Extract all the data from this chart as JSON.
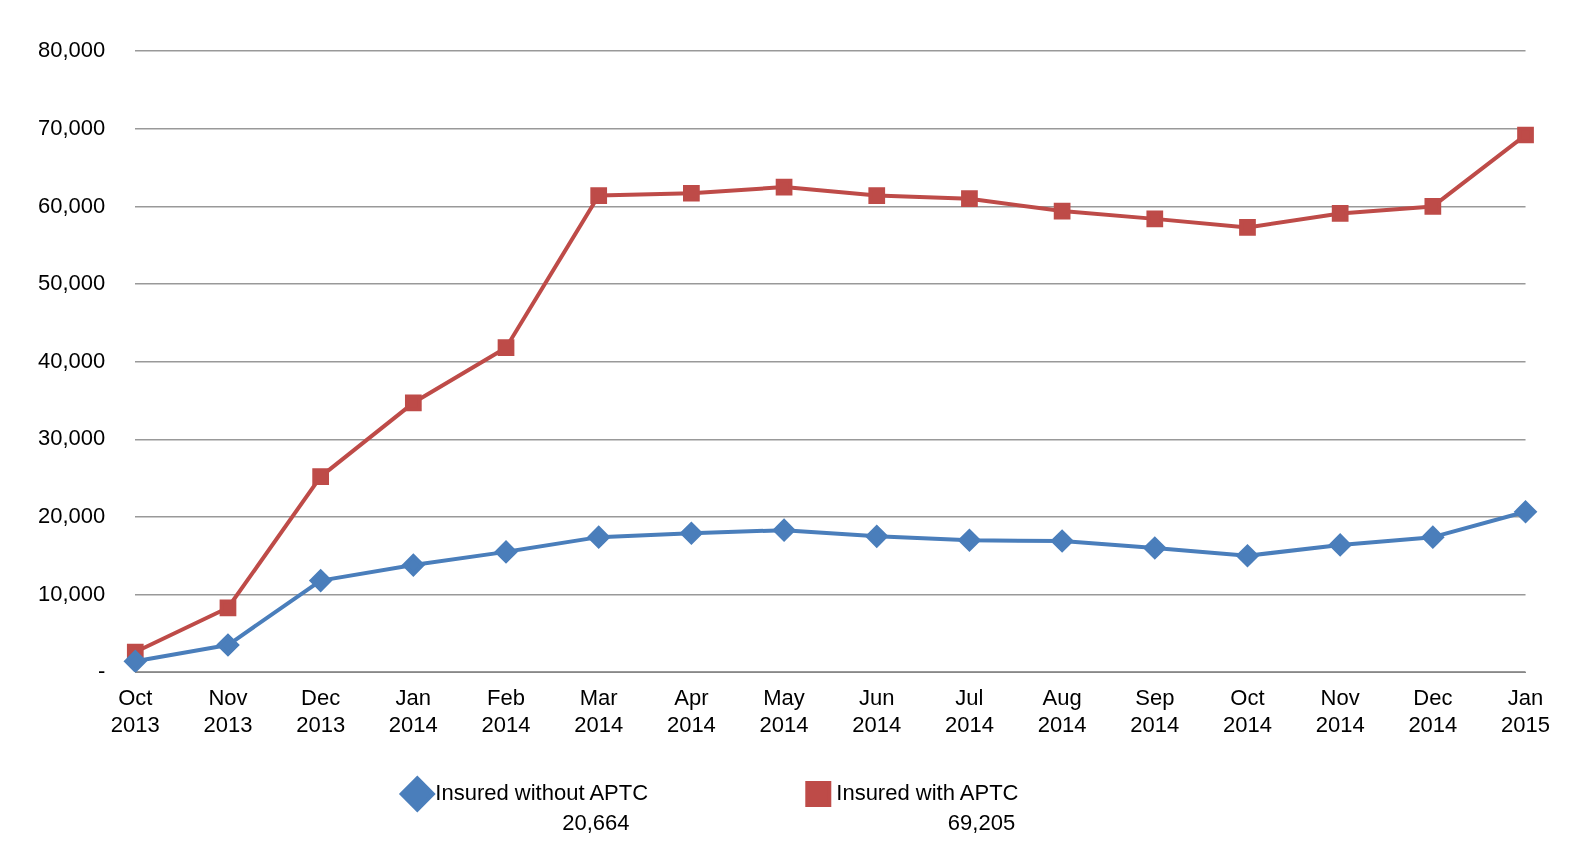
{
  "chart_data": {
    "type": "line",
    "categories": [
      "Oct 2013",
      "Nov 2013",
      "Dec 2013",
      "Jan 2014",
      "Feb 2014",
      "Mar 2014",
      "Apr 2014",
      "May 2014",
      "Jun 2014",
      "Jul 2014",
      "Aug 2014",
      "Sep 2014",
      "Oct 2014",
      "Nov 2014",
      "Dec 2014",
      "Jan 2015"
    ],
    "series": [
      {
        "name": "Insured without APTC",
        "color": "#4a7ebb",
        "marker": "diamond",
        "values": [
          1400,
          3500,
          11800,
          13800,
          15500,
          17400,
          17900,
          18300,
          17500,
          17000,
          16900,
          16000,
          15000,
          16400,
          17400,
          20664
        ]
      },
      {
        "name": "Insured with APTC",
        "color": "#be4b48",
        "marker": "square",
        "values": [
          2600,
          8300,
          25200,
          34700,
          41800,
          61400,
          61700,
          62500,
          61400,
          61000,
          59400,
          58400,
          57300,
          59100,
          60000,
          69205
        ]
      }
    ],
    "ylim": [
      0,
      80000
    ],
    "yticks": [
      {
        "value": 0,
        "label": "-"
      },
      {
        "value": 10000,
        "label": "10,000"
      },
      {
        "value": 20000,
        "label": "20,000"
      },
      {
        "value": 30000,
        "label": "30,000"
      },
      {
        "value": 40000,
        "label": "40,000"
      },
      {
        "value": 50000,
        "label": "50,000"
      },
      {
        "value": 60000,
        "label": "60,000"
      },
      {
        "value": 70000,
        "label": "70,000"
      },
      {
        "value": 80000,
        "label": "80,000"
      }
    ],
    "grid": "y",
    "legend": "bottom",
    "annotations": [
      "20,664",
      "69,205"
    ]
  }
}
